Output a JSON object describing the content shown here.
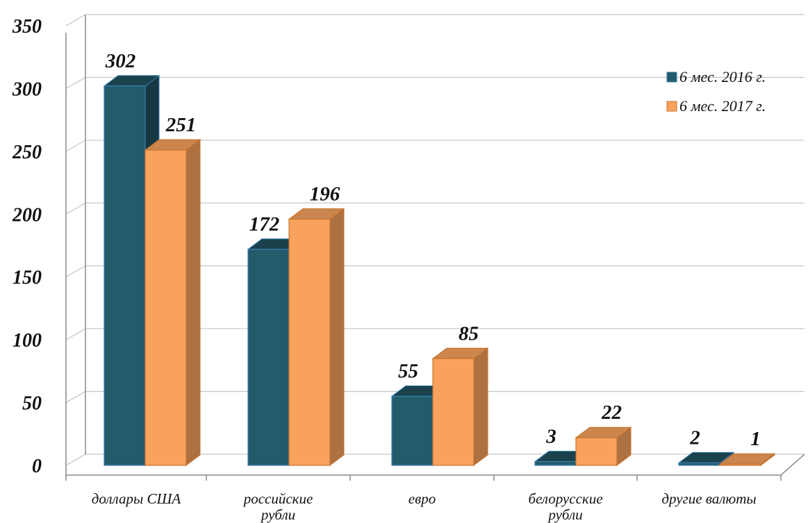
{
  "chart_data": {
    "type": "bar",
    "categories": [
      [
        "доллары США"
      ],
      [
        "российские",
        "рубли"
      ],
      [
        "евро"
      ],
      [
        "белорусские",
        "рубли"
      ],
      [
        "другие валюты"
      ]
    ],
    "series": [
      {
        "name": "6 мес. 2016 г.",
        "values": [
          302,
          172,
          55,
          3,
          2
        ],
        "color": "#245b6b"
      },
      {
        "name": "6 мес. 2017 г.",
        "values": [
          251,
          196,
          85,
          22,
          1
        ],
        "color": "#f8a25e"
      }
    ],
    "yticks": [
      "0",
      "50",
      "100",
      "150",
      "200",
      "250",
      "300",
      "350"
    ],
    "ylim": [
      0,
      350
    ],
    "grid": true,
    "legend": "top-right",
    "style": "3d-clustered-column"
  }
}
